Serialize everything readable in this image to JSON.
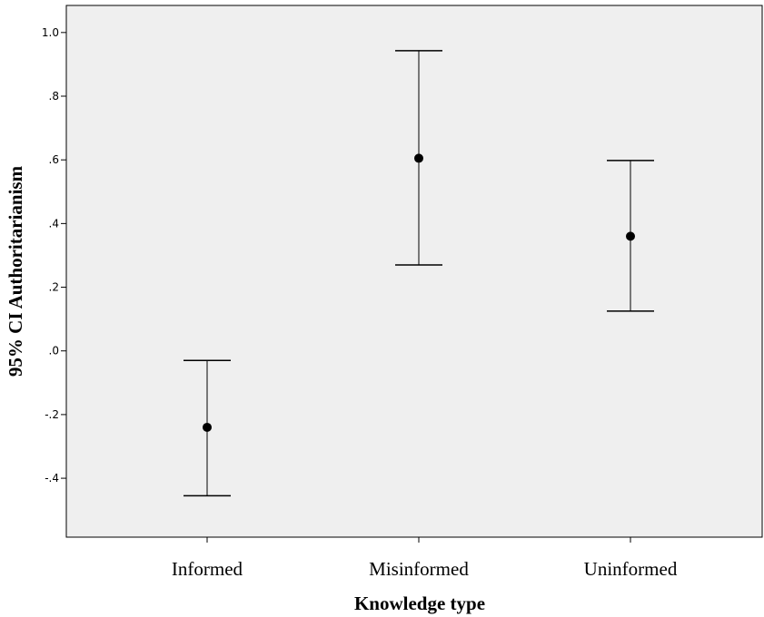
{
  "chart_data": {
    "type": "errorbar",
    "categories": [
      "Informed",
      "Misinformed",
      "Uninformed"
    ],
    "series": [
      {
        "values": [
          -0.24,
          0.605,
          0.36
        ],
        "ci_lower": [
          -0.455,
          0.27,
          0.125
        ],
        "ci_upper": [
          -0.03,
          0.943,
          0.598
        ]
      }
    ],
    "xlabel": "Knowledge type",
    "ylabel": "95% CI Authoritarianism",
    "ylim": [
      -0.585,
      1.085
    ],
    "yticks": [
      -0.4,
      -0.2,
      0.0,
      0.2,
      0.4,
      0.6,
      0.8,
      1.0
    ],
    "ytick_labels": [
      "-.4",
      "-.2",
      ".0",
      ".2",
      ".4",
      ".6",
      ".8",
      "1.0"
    ],
    "grid": false,
    "plot_background": "#efefef",
    "marker_color": "#000000",
    "errorbar_color": "#000000"
  }
}
